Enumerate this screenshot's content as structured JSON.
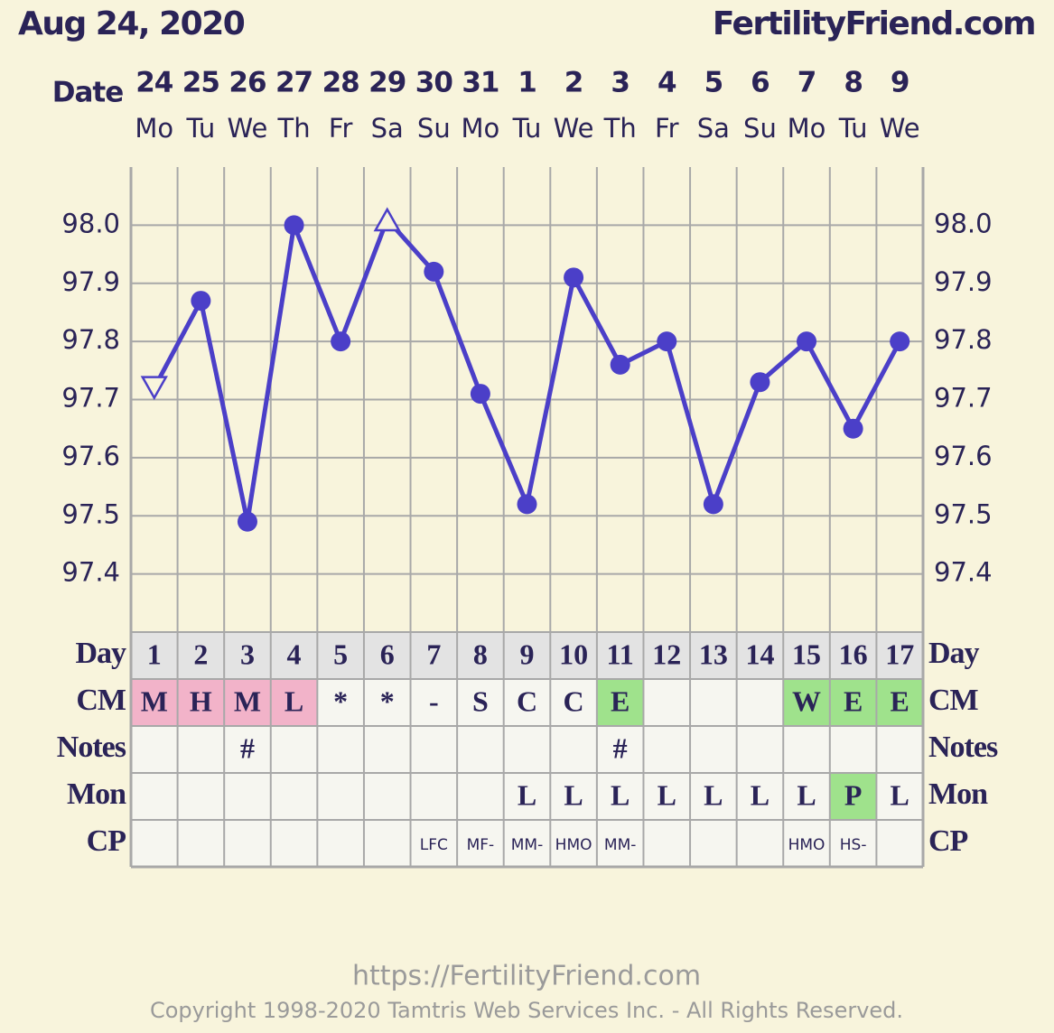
{
  "header": {
    "date": "Aug 24, 2020",
    "site": "FertilityFriend.com"
  },
  "chart_data": {
    "type": "line",
    "x_label": "Date",
    "x": [
      "24",
      "25",
      "26",
      "27",
      "28",
      "29",
      "30",
      "31",
      "1",
      "2",
      "3",
      "4",
      "5",
      "6",
      "7",
      "8",
      "9"
    ],
    "weekdays": [
      "Mo",
      "Tu",
      "We",
      "Th",
      "Fr",
      "Sa",
      "Su",
      "Mo",
      "Tu",
      "We",
      "Th",
      "Fr",
      "Sa",
      "Su",
      "Mo",
      "Tu",
      "We"
    ],
    "series": [
      {
        "color": "#4b3fc8",
        "values": [
          97.72,
          97.87,
          97.49,
          98.0,
          97.8,
          98.01,
          97.92,
          97.71,
          97.52,
          97.91,
          97.76,
          97.8,
          97.52,
          97.73,
          97.8,
          97.65,
          97.8
        ],
        "markers": [
          "triangle-open",
          "circle",
          "circle",
          "circle",
          "circle",
          "triangle-open",
          "circle",
          "circle",
          "circle",
          "circle",
          "circle",
          "circle",
          "circle",
          "circle",
          "circle",
          "circle",
          "circle"
        ]
      }
    ],
    "ylim": [
      97.3,
      98.1
    ],
    "yticks": [
      97.4,
      97.5,
      97.6,
      97.7,
      97.8,
      97.9,
      {
        "value": 98,
        "label": "98.0"
      }
    ],
    "grid": true
  },
  "rows": [
    {
      "label": "Day",
      "values": [
        1,
        2,
        3,
        4,
        5,
        6,
        7,
        8,
        9,
        10,
        11,
        12,
        13,
        14,
        15,
        16,
        17
      ],
      "fill": "#e3e3e3",
      "size": "large"
    },
    {
      "label": "CM",
      "values": [
        "M",
        "H",
        "M",
        "L",
        "*",
        "*",
        "-",
        "S",
        "C",
        "C",
        "E",
        null,
        null,
        null,
        "W",
        "E",
        "E"
      ],
      "colors": [
        "#f2b3c9",
        "#f2b3c9",
        "#f2b3c9",
        "#f2b3c9",
        null,
        null,
        null,
        null,
        null,
        null,
        "#9fe28c",
        null,
        null,
        null,
        "#9fe28c",
        "#9fe28c",
        "#9fe28c"
      ],
      "size": "large"
    },
    {
      "label": "Notes",
      "values": [
        null,
        null,
        "#",
        null,
        null,
        null,
        null,
        null,
        null,
        null,
        "#",
        null,
        null,
        null,
        null,
        null,
        null
      ],
      "size": "large"
    },
    {
      "label": "Mon",
      "values": [
        null,
        null,
        null,
        null,
        null,
        null,
        null,
        null,
        "L",
        "L",
        "L",
        "L",
        "L",
        "L",
        "L",
        "P",
        "L"
      ],
      "colors": [
        null,
        null,
        null,
        null,
        null,
        null,
        null,
        null,
        null,
        null,
        null,
        null,
        null,
        null,
        null,
        "#9fe28c",
        null
      ],
      "size": "large"
    },
    {
      "label": "CP",
      "values": [
        null,
        null,
        null,
        null,
        null,
        null,
        "LFC",
        "MF-",
        "MM-",
        "HMO",
        "MM-",
        null,
        null,
        null,
        "HMO",
        "HS-",
        null
      ],
      "size": "small"
    }
  ],
  "footer": {
    "url": "https://FertilityFriend.com",
    "copyright": "Copyright 1998-2020 Tamtris Web Services Inc. - All Rights Reserved."
  }
}
